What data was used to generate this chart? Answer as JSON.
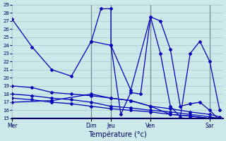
{
  "title": "Température (°c)",
  "background_color": "#cce8e8",
  "grid_color": "#aabccc",
  "line_color": "#0000bb",
  "ylim": [
    15,
    29
  ],
  "yticks": [
    15,
    16,
    17,
    18,
    19,
    20,
    21,
    22,
    23,
    24,
    25,
    26,
    27,
    28,
    29
  ],
  "xlim": [
    0,
    1
  ],
  "day_positions": [
    0.0,
    0.375,
    0.468,
    0.656,
    0.937
  ],
  "day_labels": [
    "Mer",
    "Dim",
    "Jeu",
    "Ven",
    "Sar"
  ],
  "series": [
    [
      [
        0.0,
        27.2
      ],
      [
        0.094,
        23.8
      ],
      [
        0.188,
        21.0
      ],
      [
        0.281,
        20.2
      ],
      [
        0.375,
        24.5
      ],
      [
        0.421,
        28.5
      ],
      [
        0.468,
        28.5
      ],
      [
        0.468,
        24.0
      ],
      [
        0.515,
        15.5
      ],
      [
        0.562,
        18.2
      ],
      [
        0.609,
        18.0
      ],
      [
        0.656,
        27.5
      ],
      [
        0.703,
        27.0
      ],
      [
        0.75,
        23.5
      ],
      [
        0.797,
        16.5
      ],
      [
        0.844,
        16.8
      ],
      [
        0.89,
        17.0
      ],
      [
        0.937,
        16.0
      ],
      [
        0.984,
        14.8
      ]
    ],
    [
      [
        0.0,
        19.0
      ],
      [
        0.094,
        18.8
      ],
      [
        0.188,
        18.2
      ],
      [
        0.281,
        18.0
      ],
      [
        0.375,
        17.8
      ],
      [
        0.468,
        17.5
      ],
      [
        0.562,
        17.2
      ],
      [
        0.656,
        16.5
      ],
      [
        0.75,
        16.2
      ],
      [
        0.844,
        15.8
      ],
      [
        0.937,
        15.5
      ],
      [
        0.984,
        15.2
      ]
    ],
    [
      [
        0.0,
        18.0
      ],
      [
        0.094,
        17.8
      ],
      [
        0.188,
        17.5
      ],
      [
        0.281,
        17.3
      ],
      [
        0.375,
        17.0
      ],
      [
        0.468,
        16.5
      ],
      [
        0.562,
        16.3
      ],
      [
        0.656,
        16.0
      ],
      [
        0.75,
        15.8
      ],
      [
        0.844,
        15.5
      ],
      [
        0.937,
        15.2
      ],
      [
        0.984,
        15.0
      ]
    ],
    [
      [
        0.0,
        17.5
      ],
      [
        0.094,
        17.3
      ],
      [
        0.188,
        17.0
      ],
      [
        0.281,
        16.8
      ],
      [
        0.375,
        16.5
      ],
      [
        0.468,
        16.2
      ],
      [
        0.562,
        16.0
      ],
      [
        0.656,
        15.8
      ],
      [
        0.75,
        15.5
      ],
      [
        0.844,
        15.3
      ],
      [
        0.937,
        15.0
      ]
    ],
    [
      [
        0.0,
        17.0
      ],
      [
        0.188,
        17.2
      ],
      [
        0.375,
        18.0
      ],
      [
        0.468,
        17.5
      ],
      [
        0.562,
        17.2
      ],
      [
        0.656,
        16.5
      ],
      [
        0.75,
        15.5
      ],
      [
        0.844,
        15.3
      ],
      [
        0.937,
        15.0
      ]
    ],
    [
      [
        0.375,
        24.5
      ],
      [
        0.468,
        24.0
      ],
      [
        0.562,
        18.5
      ],
      [
        0.656,
        27.5
      ],
      [
        0.703,
        23.0
      ],
      [
        0.75,
        16.5
      ],
      [
        0.797,
        15.2
      ],
      [
        0.844,
        23.0
      ],
      [
        0.89,
        24.5
      ],
      [
        0.937,
        22.0
      ],
      [
        0.984,
        16.0
      ]
    ]
  ]
}
